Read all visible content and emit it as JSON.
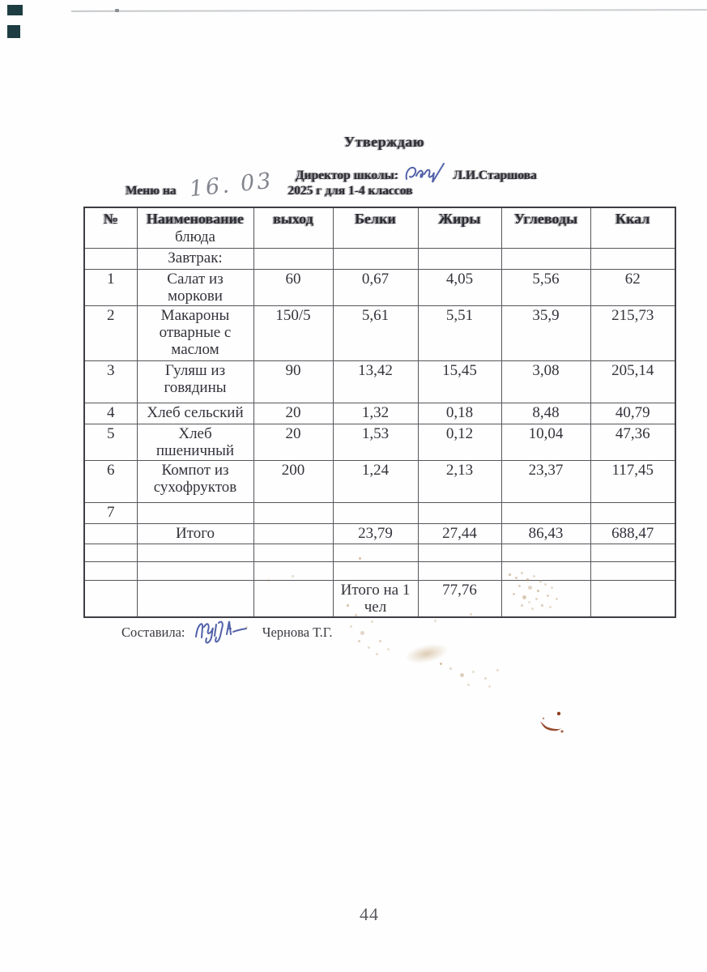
{
  "document": {
    "approve_title": "Утверждаю",
    "director_label": "Директор школы:",
    "director_name": "Л.И.Старшова",
    "menu_label": "Меню на",
    "menu_date_handwritten": "16. 03",
    "menu_suffix": "2025 г для 1-4 классов",
    "composed_label": "Составила:",
    "composed_name": "Чернова Т.Г.",
    "page_number": "44"
  },
  "table": {
    "columns": [
      {
        "label": "№"
      },
      {
        "label": "Наименование",
        "sublabel": "блюда"
      },
      {
        "label": "выход"
      },
      {
        "label": "Белки"
      },
      {
        "label": "Жиры"
      },
      {
        "label": "Углеводы"
      },
      {
        "label": "Ккал"
      }
    ],
    "rows": [
      {
        "cells": [
          "",
          "Завтрак:",
          "",
          "",
          "",
          "",
          ""
        ]
      },
      {
        "cells": [
          "1",
          "Салат из моркови",
          "60",
          "0,67",
          "4,05",
          "5,56",
          "62"
        ]
      },
      {
        "cells": [
          "2",
          "Макароны отварные с маслом",
          "150/5",
          "5,61",
          "5,51",
          "35,9",
          "215,73"
        ]
      },
      {
        "cells": [
          "3",
          "Гуляш из говядины",
          "90",
          "13,42",
          "15,45",
          "3,08",
          "205,14"
        ]
      },
      {
        "cells": [
          "4",
          "Хлеб сельский",
          "20",
          "1,32",
          "0,18",
          "8,48",
          "40,79"
        ]
      },
      {
        "cells": [
          "5",
          "Хлеб пшеничный",
          "20",
          "1,53",
          "0,12",
          "10,04",
          "47,36"
        ]
      },
      {
        "cells": [
          "6",
          "Компот из сухофруктов",
          "200",
          "1,24",
          "2,13",
          "23,37",
          "117,45"
        ]
      },
      {
        "cells": [
          "7",
          "",
          "",
          "",
          "",
          "",
          ""
        ]
      },
      {
        "cells": [
          "",
          "Итого",
          "",
          "23,79",
          "27,44",
          "86,43",
          "688,47"
        ]
      },
      {
        "cells": [
          "",
          "",
          "",
          "",
          "",
          "",
          ""
        ]
      },
      {
        "cells": [
          "",
          "",
          "",
          "",
          "",
          "",
          ""
        ]
      },
      {
        "cells": [
          "",
          "",
          "",
          "Итого на 1 чел",
          "77,76",
          "",
          ""
        ]
      }
    ]
  },
  "colors": {
    "ink": "#2c2c34",
    "blue_ink": "#3f51a0",
    "stain": "#b08d5e",
    "red_mark": "#8f3d1e"
  }
}
